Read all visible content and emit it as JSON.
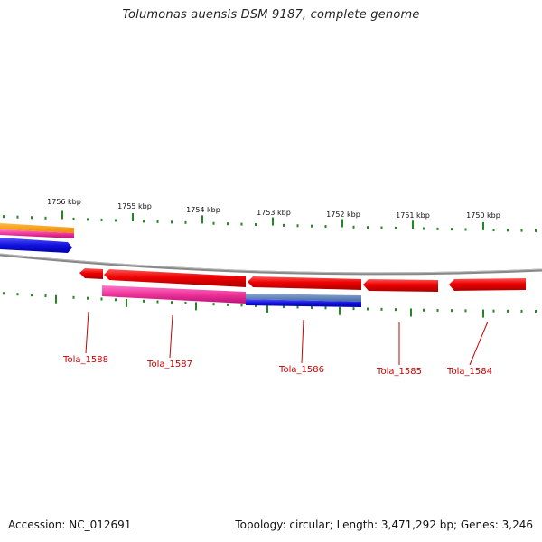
{
  "title": "Tolumonas auensis DSM 9187, complete genome",
  "footer": {
    "accession": "Accession: NC_012691",
    "summary": "Topology: circular; Length: 3,471,292 bp; Genes: 3,246"
  },
  "scale_labels": [
    "1756 kbp",
    "1755 kbp",
    "1754 kbp",
    "1753 kbp",
    "1752 kbp",
    "1751 kbp",
    "1750 kbp"
  ],
  "gene_labels": [
    "Tola_1588",
    "Tola_1587",
    "Tola_1586",
    "Tola_1585",
    "Tola_1584"
  ],
  "colors": {
    "gene_red": "#ee0000",
    "gene_pink": "#ee3399",
    "gene_blue": "#1111dd",
    "gene_steelblue": "#5577aa",
    "gene_orange": "#ff9900",
    "backbone": "#888888",
    "ticks": "#228822",
    "label": "#cc0000"
  }
}
